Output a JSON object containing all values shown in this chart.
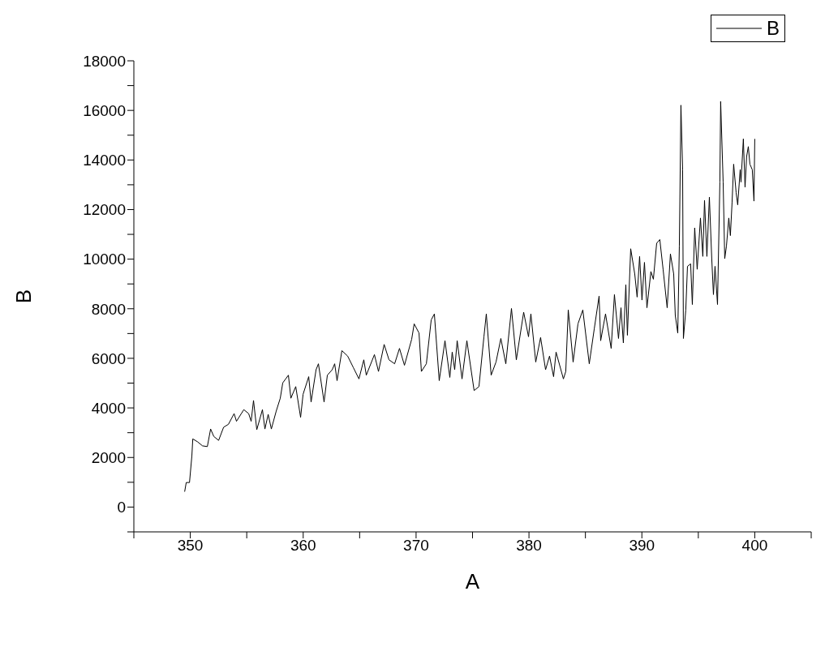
{
  "chart_data": {
    "type": "line",
    "xlabel": "A",
    "ylabel": "B",
    "xlim": [
      345,
      405
    ],
    "ylim": [
      -1000,
      18000
    ],
    "xticks": [
      {
        "value": 345,
        "label": null
      },
      350,
      {
        "value": 355,
        "label": null
      },
      360,
      {
        "value": 365,
        "label": null
      },
      370,
      {
        "value": 375,
        "label": null
      },
      380,
      {
        "value": 385,
        "label": null
      },
      390,
      {
        "value": 395,
        "label": null
      },
      400,
      {
        "value": 405,
        "label": null
      }
    ],
    "yticks": [
      {
        "value": -1000,
        "label": null
      },
      0,
      {
        "value": 1000,
        "label": null
      },
      2000,
      {
        "value": 3000,
        "label": null
      },
      4000,
      {
        "value": 5000,
        "label": null
      },
      6000,
      {
        "value": 7000,
        "label": null
      },
      8000,
      {
        "value": 9000,
        "label": null
      },
      10000,
      {
        "value": 11000,
        "label": null
      },
      12000,
      {
        "value": 13000,
        "label": null
      },
      14000,
      {
        "value": 15000,
        "label": null
      },
      16000,
      {
        "value": 17000,
        "label": null
      },
      18000
    ],
    "grid": false,
    "legend": "top right",
    "marker": "none",
    "line_style": "solid",
    "x": [
      349.5,
      349.64,
      349.93,
      350.14,
      350.22,
      350.65,
      351.08,
      351.51,
      351.8,
      352.08,
      352.51,
      352.95,
      353.38,
      353.88,
      354.09,
      354.74,
      355.17,
      355.39,
      355.6,
      355.89,
      356.39,
      356.61,
      356.9,
      357.18,
      357.61,
      357.97,
      358.19,
      358.69,
      358.91,
      359.34,
      359.77,
      359.99,
      360.49,
      360.7,
      361.14,
      361.35,
      361.85,
      362.14,
      362.57,
      362.79,
      363.0,
      363.43,
      363.94,
      364.44,
      364.94,
      365.37,
      365.59,
      366.31,
      366.67,
      367.17,
      367.6,
      368.1,
      368.53,
      368.97,
      369.61,
      369.83,
      370.26,
      370.47,
      370.91,
      371.34,
      371.62,
      372.05,
      372.56,
      372.99,
      373.2,
      373.42,
      373.64,
      374.07,
      374.5,
      375.14,
      375.57,
      376.01,
      376.22,
      376.65,
      377.08,
      377.51,
      377.95,
      378.45,
      378.88,
      379.53,
      379.96,
      380.17,
      380.6,
      381.03,
      381.47,
      381.82,
      382.18,
      382.4,
      383.05,
      383.26,
      383.48,
      383.91,
      384.34,
      384.77,
      385.34,
      385.78,
      386.21,
      386.35,
      386.78,
      387.28,
      387.57,
      387.93,
      388.15,
      388.36,
      388.58,
      388.72,
      389.01,
      389.37,
      389.58,
      389.8,
      390.01,
      390.23,
      390.45,
      390.8,
      391.02,
      391.31,
      391.59,
      391.88,
      392.24,
      392.53,
      392.82,
      392.96,
      393.18,
      393.32,
      393.46,
      393.61,
      393.68,
      393.89,
      394.04,
      394.32,
      394.47,
      394.68,
      394.9,
      395.19,
      395.4,
      395.55,
      395.76,
      395.98,
      396.19,
      396.34,
      396.48,
      396.7,
      396.91,
      396.98,
      397.2,
      397.34,
      397.49,
      397.7,
      397.84,
      397.99,
      398.13,
      398.35,
      398.49,
      398.71,
      398.78,
      398.99,
      399.14,
      399.28,
      399.43,
      399.57,
      399.78,
      399.93,
      400.0
    ],
    "series": [
      {
        "name": "B",
        "color": "#000000",
        "values": [
          620,
          990,
          990,
          2070,
          2750,
          2630,
          2470,
          2440,
          3150,
          2850,
          2690,
          3220,
          3340,
          3770,
          3460,
          3930,
          3770,
          3460,
          4300,
          3120,
          3930,
          3150,
          3740,
          3150,
          3870,
          4390,
          5010,
          5320,
          4390,
          4860,
          3620,
          4550,
          5260,
          4240,
          5540,
          5780,
          4240,
          5320,
          5540,
          5780,
          5100,
          6310,
          6090,
          5630,
          5170,
          5940,
          5320,
          6150,
          5470,
          6560,
          5940,
          5780,
          6400,
          5720,
          6770,
          7390,
          7020,
          5470,
          5780,
          7550,
          7790,
          5100,
          6710,
          5230,
          6250,
          5540,
          6710,
          5170,
          6710,
          4700,
          4860,
          6870,
          7790,
          5320,
          5850,
          6800,
          5780,
          8010,
          5940,
          7860,
          6870,
          7790,
          5850,
          6840,
          5540,
          6090,
          5260,
          6250,
          5170,
          5470,
          7950,
          5850,
          7390,
          7950,
          5780,
          7180,
          8510,
          6710,
          7790,
          6400,
          8570,
          6800,
          8040,
          6620,
          8970,
          6930,
          10420,
          9400,
          8470,
          10110,
          8350,
          9870,
          8040,
          9500,
          9190,
          10640,
          10790,
          9590,
          8040,
          10210,
          9400,
          7730,
          7020,
          10520,
          16210,
          13610,
          6800,
          7950,
          9710,
          9810,
          8170,
          11260,
          9590,
          11660,
          10110,
          12370,
          10110,
          12500,
          10020,
          8570,
          9710,
          8170,
          13110,
          16360,
          13110,
          10020,
          10520,
          11660,
          10950,
          12280,
          13830,
          12680,
          12190,
          13610,
          13110,
          14850,
          12900,
          14140,
          14540,
          13830,
          13610,
          12340,
          14850
        ]
      }
    ]
  }
}
